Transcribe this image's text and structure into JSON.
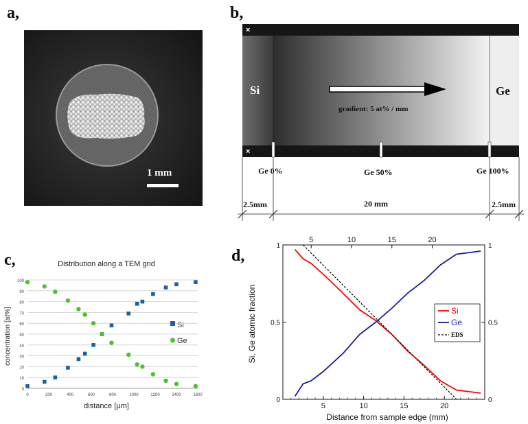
{
  "panels": {
    "a": {
      "label": "a,",
      "scale_bar": "1 mm"
    },
    "b": {
      "label": "b,",
      "left_material": "Si",
      "right_material": "Ge",
      "gradient_text": "gradient: 5 at% / mm",
      "corner_mark_top": "×",
      "corner_mark_bottom": "×",
      "markers": [
        "Ge 0%",
        "Ge 50%",
        "Ge 100%"
      ],
      "dims": [
        "2.5mm",
        "20 mm",
        "2.5mm"
      ]
    },
    "c": {
      "label": "c,"
    },
    "d": {
      "label": "d,"
    }
  },
  "chart_data": [
    {
      "type": "scatter",
      "title": "Distribution along a TEM grid",
      "xlabel": "distance [µm]",
      "ylabel": "concentration [at%]",
      "xlim": [
        0,
        1600
      ],
      "ylim": [
        0,
        100
      ],
      "x_ticks": [
        "0",
        "200",
        "400",
        "600",
        "800",
        "1000",
        "1200",
        "1400",
        "1600"
      ],
      "y_ticks": [
        "0",
        "10",
        "20",
        "30",
        "40",
        "50",
        "60",
        "70",
        "80",
        "90",
        "100"
      ],
      "series": [
        {
          "name": "Si",
          "color": "#1f5fa0",
          "marker": "square",
          "x": [
            0,
            160,
            260,
            380,
            480,
            540,
            620,
            700,
            790,
            950,
            1030,
            1080,
            1180,
            1300,
            1400,
            1580
          ],
          "y": [
            2,
            6,
            10,
            19,
            27,
            32,
            40,
            50,
            58,
            69,
            78,
            80,
            87,
            93,
            96,
            98
          ]
        },
        {
          "name": "Ge",
          "color": "#4ec02e",
          "marker": "circle",
          "x": [
            0,
            160,
            260,
            380,
            480,
            540,
            620,
            700,
            790,
            950,
            1030,
            1080,
            1180,
            1300,
            1400,
            1580
          ],
          "y": [
            98,
            94,
            89,
            81,
            73,
            68,
            60,
            50,
            42,
            31,
            22,
            20,
            13,
            7,
            4,
            2
          ]
        }
      ]
    },
    {
      "type": "line",
      "xlabel": "Distance from sample edge (mm)",
      "ylabel": "Si, Ge atomic fraction",
      "xlim": [
        0,
        25
      ],
      "ylim": [
        0,
        1
      ],
      "top_x_ticks": [
        "5",
        "10",
        "15",
        "20"
      ],
      "bottom_x_ticks": [
        "5",
        "10",
        "15",
        "20"
      ],
      "left_y_ticks": [
        "0",
        "0.5",
        "1"
      ],
      "right_y_ticks": [
        "0",
        "0.5",
        "1"
      ],
      "series": [
        {
          "name": "Si",
          "color": "#ff0000",
          "style": "solid",
          "x": [
            1.5,
            2.5,
            3.5,
            5,
            7,
            9.5,
            11.5,
            13.5,
            15.5,
            17.5,
            19.5,
            21.5,
            24.5
          ],
          "y": [
            0.97,
            0.91,
            0.88,
            0.81,
            0.71,
            0.58,
            0.51,
            0.42,
            0.31,
            0.22,
            0.12,
            0.06,
            0.04
          ]
        },
        {
          "name": "Ge",
          "color": "#1a1a9c",
          "style": "solid",
          "x": [
            1.5,
            2.5,
            3.5,
            5,
            7.5,
            9.5,
            11.5,
            13.5,
            15.5,
            17.5,
            19.5,
            21.5,
            24.5
          ],
          "y": [
            0.02,
            0.1,
            0.12,
            0.18,
            0.3,
            0.42,
            0.5,
            0.59,
            0.69,
            0.77,
            0.87,
            0.94,
            0.96
          ]
        },
        {
          "name": "EDS",
          "color": "#000000",
          "style": "dashed",
          "x": [
            2.5,
            21.5
          ],
          "y": [
            1.0,
            0.0
          ]
        }
      ]
    }
  ]
}
